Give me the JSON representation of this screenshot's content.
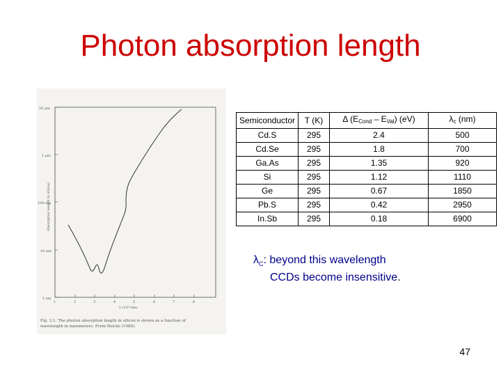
{
  "slide": {
    "title": "Photon absorption length",
    "page_number": "47"
  },
  "figure": {
    "y_axis_label": "Absorption length in silicon",
    "x_axis_label": "λ (10³ nm)",
    "y_ticks": [
      "10 μm",
      "1 μm",
      "100 nm",
      "10 nm",
      "1 nm"
    ],
    "x_ticks": [
      "1",
      "2",
      "3",
      "4",
      "5",
      "6",
      "7",
      "8"
    ],
    "caption_line1": "Fig. 3.1.  The photon absorption length in silicon is shown as a function of",
    "caption_line2": "wavelength in nanometers. From Reicke (1984)."
  },
  "table": {
    "headers": {
      "semiconductor": "Semiconductor",
      "temperature": "T (K)",
      "delta_symbol": "Δ",
      "delta_pre": "(E",
      "cond_sub": "Cond",
      "delta_mid": " – E",
      "val_sub": "Val",
      "delta_post": ") (eV)",
      "lambda_symbol": "λ",
      "lambda_sub": "c",
      "lambda_post": " (nm)"
    },
    "rows": [
      {
        "material": "Cd.S",
        "t": "295",
        "gap": "2.4",
        "lambda": "500"
      },
      {
        "material": "Cd.Se",
        "t": "295",
        "gap": "1.8",
        "lambda": "700"
      },
      {
        "material": "Ga.As",
        "t": "295",
        "gap": "1.35",
        "lambda": "920"
      },
      {
        "material": "Si",
        "t": "295",
        "gap": "1.12",
        "lambda": "1110"
      },
      {
        "material": "Ge",
        "t": "295",
        "gap": "0.67",
        "lambda": "1850"
      },
      {
        "material": "Pb.S",
        "t": "295",
        "gap": "0.42",
        "lambda": "2950"
      },
      {
        "material": "In.Sb",
        "t": "295",
        "gap": "0.18",
        "lambda": "6900"
      }
    ]
  },
  "note": {
    "lambda_symbol": "λ",
    "lambda_sub": "C",
    "line1": ": beyond this wavelength",
    "line2_pre": "CCDs become insensitive",
    "line2_post": "."
  }
}
